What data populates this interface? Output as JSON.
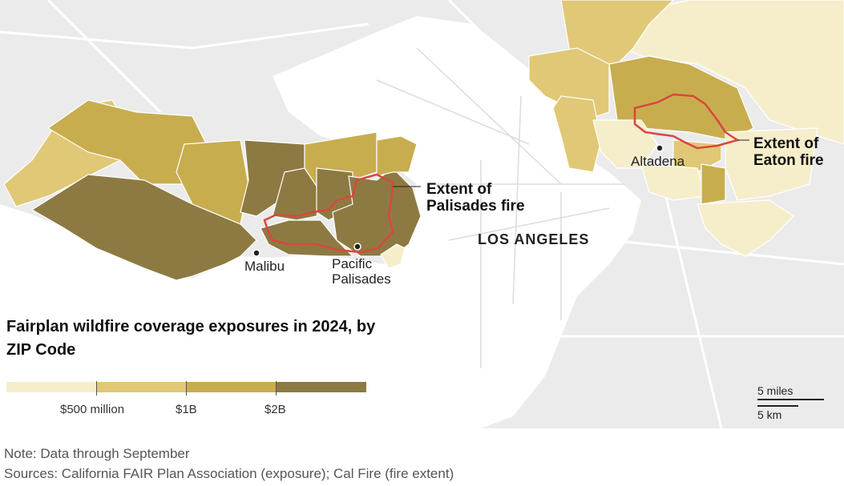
{
  "map": {
    "places": [
      {
        "name": "Malibu"
      },
      {
        "name": "Pacific Palisades",
        "line1": "Pacific",
        "line2": "Palisades"
      },
      {
        "name": "Altadena"
      }
    ],
    "city_label": "LOS ANGELES",
    "fires": [
      {
        "line1": "Extent of",
        "line2": "Palisades fire"
      },
      {
        "line1": "Extent of",
        "line2": "Eaton fire"
      }
    ],
    "colors": {
      "land": "#ebebeb",
      "water": "#ffffff",
      "roads": "#ffffff",
      "fire_outline": "#d9473f",
      "bins": [
        "#f6eecb",
        "#e0c876",
        "#c8ad4f",
        "#8d7a42"
      ]
    }
  },
  "legend": {
    "title": "Fairplan wildfire coverage exposures in 2024, by ZIP Code",
    "breaks": [
      "$500 million",
      "$1B",
      "$2B"
    ]
  },
  "scale": {
    "miles_label": "5 miles",
    "km_label": "5 km"
  },
  "footer": {
    "note": "Note: Data through September",
    "sources": "Sources: California FAIR Plan Association (exposure); Cal Fire (fire extent)"
  }
}
